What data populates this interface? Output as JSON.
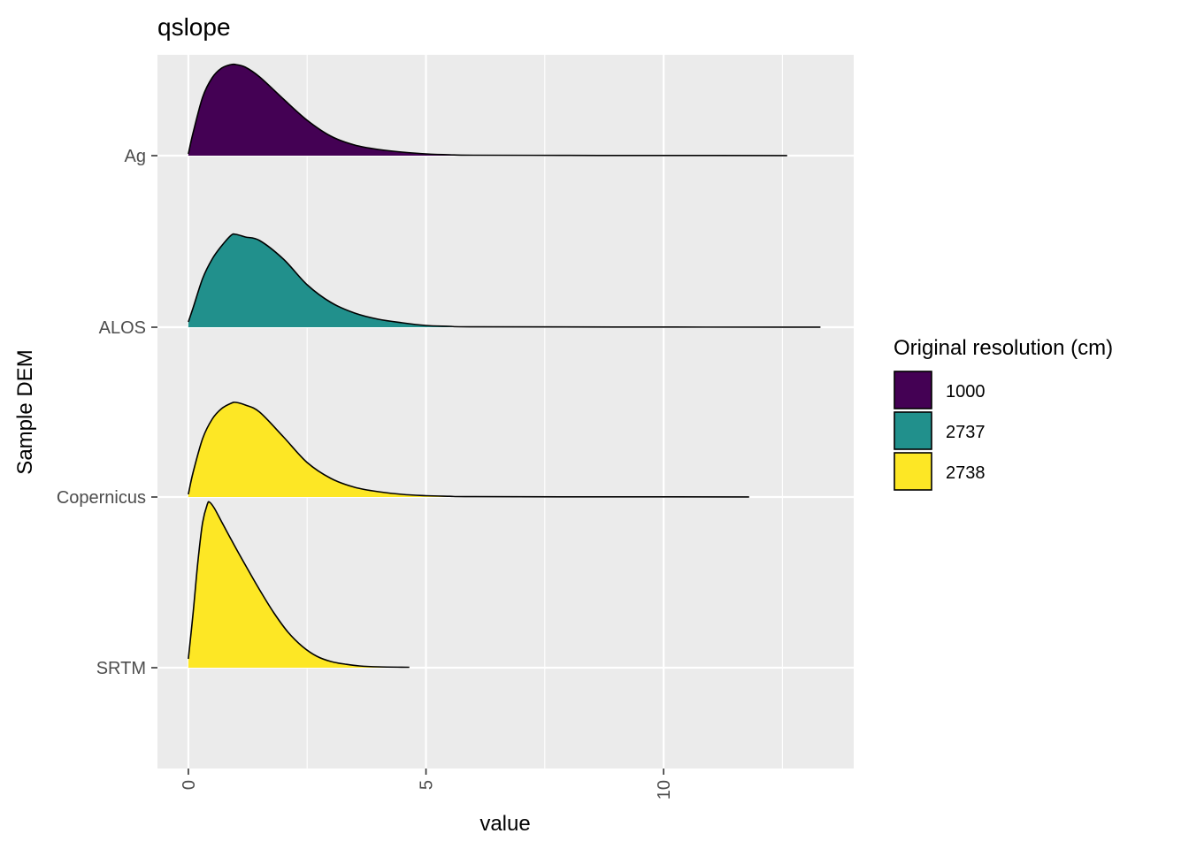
{
  "chart_data": {
    "type": "area",
    "title": "qslope",
    "xlabel": "value",
    "ylabel": "Sample DEM",
    "xlim": [
      -0.65,
      14.0
    ],
    "x_ticks": [
      0,
      5,
      10
    ],
    "x_tick_labels": [
      "0",
      "5",
      "10"
    ],
    "x_minor_ticks": [
      2.5,
      7.5,
      12.5
    ],
    "y_categories": [
      "SRTM",
      "Copernicus",
      "ALOS",
      "Ag"
    ],
    "grid": true,
    "legend": {
      "title": "Original resolution (cm)",
      "placement": "right",
      "entries": [
        {
          "label": "1000",
          "color": "#440154"
        },
        {
          "label": "2737",
          "color": "#21908C"
        },
        {
          "label": "2738",
          "color": "#FDE725"
        }
      ]
    },
    "series": [
      {
        "category": "Ag",
        "resolution": "1000",
        "color": "#440154",
        "x": [
          0,
          0.1,
          0.3,
          0.5,
          0.7,
          0.9,
          1.0,
          1.2,
          1.5,
          2.0,
          2.5,
          3.0,
          3.5,
          4.0,
          4.5,
          5.0,
          5.5,
          6.0,
          8.0,
          10.0,
          12.6
        ],
        "height": [
          0.02,
          0.26,
          0.66,
          0.88,
          0.99,
          1.03,
          1.03,
          1.0,
          0.89,
          0.64,
          0.4,
          0.22,
          0.12,
          0.07,
          0.04,
          0.02,
          0.01,
          0.005,
          0.003,
          0.002,
          0.001
        ]
      },
      {
        "category": "ALOS",
        "resolution": "2737",
        "color": "#21908C",
        "x": [
          0,
          0.1,
          0.3,
          0.5,
          0.7,
          0.9,
          1.0,
          1.2,
          1.5,
          2.0,
          2.5,
          3.0,
          3.5,
          4.0,
          4.5,
          5.0,
          5.5,
          6.0,
          9.0,
          13.3
        ],
        "height": [
          0.06,
          0.22,
          0.55,
          0.77,
          0.92,
          1.04,
          1.05,
          1.02,
          0.98,
          0.77,
          0.48,
          0.28,
          0.16,
          0.09,
          0.05,
          0.02,
          0.01,
          0.004,
          0.002,
          0.001
        ]
      },
      {
        "category": "Copernicus",
        "resolution": "2738",
        "color": "#FDE725",
        "x": [
          0,
          0.1,
          0.3,
          0.5,
          0.7,
          0.9,
          1.0,
          1.2,
          1.5,
          2.0,
          2.5,
          3.0,
          3.5,
          4.0,
          4.5,
          5.0,
          5.5,
          6.0,
          9.0,
          11.8
        ],
        "height": [
          0.03,
          0.28,
          0.66,
          0.88,
          1.0,
          1.06,
          1.07,
          1.04,
          0.96,
          0.68,
          0.39,
          0.21,
          0.11,
          0.06,
          0.03,
          0.015,
          0.008,
          0.004,
          0.002,
          0.001
        ]
      },
      {
        "category": "SRTM",
        "resolution": "2738",
        "color": "#FDE725",
        "x": [
          0,
          0.1,
          0.2,
          0.3,
          0.4,
          0.45,
          0.55,
          0.7,
          0.9,
          1.2,
          1.5,
          1.8,
          2.1,
          2.4,
          2.7,
          3.0,
          3.3,
          3.6,
          4.0,
          4.65
        ],
        "height": [
          0.1,
          0.62,
          1.2,
          1.64,
          1.85,
          1.87,
          1.8,
          1.65,
          1.45,
          1.16,
          0.88,
          0.62,
          0.4,
          0.24,
          0.13,
          0.07,
          0.04,
          0.02,
          0.01,
          0.005
        ]
      }
    ]
  }
}
